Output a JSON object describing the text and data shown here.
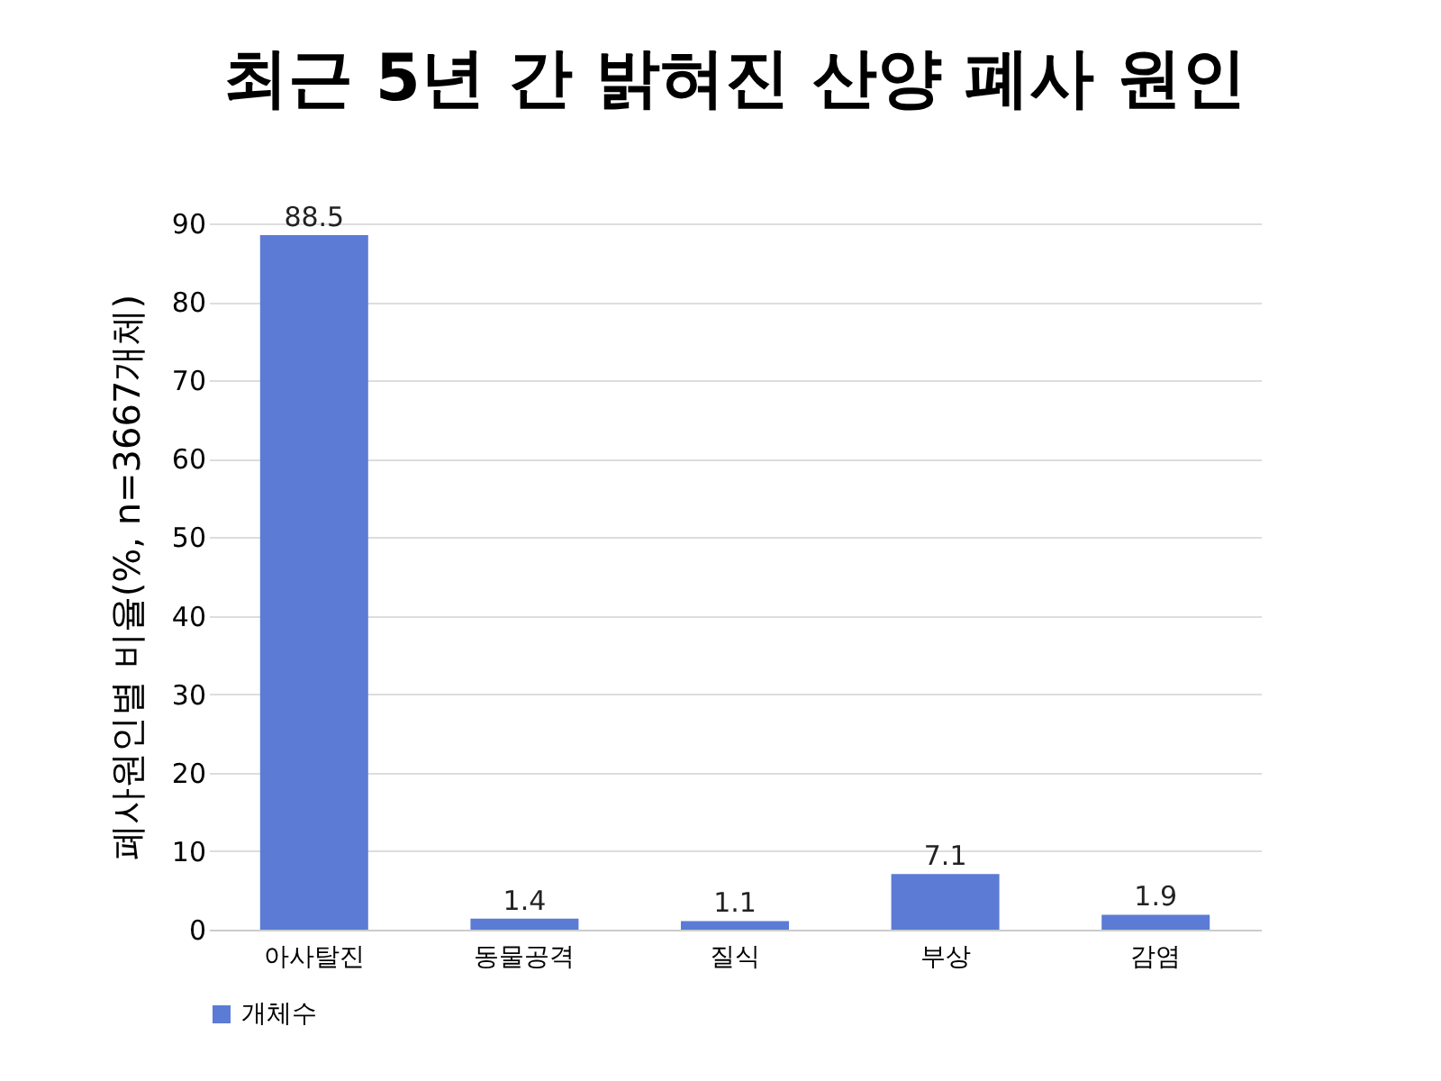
{
  "chart_data": {
    "type": "bar",
    "title": "최근 5년 간 밝혀진 산양 폐사 원인",
    "ylabel": "폐사원인별 비율(%, n=3667개체)",
    "categories": [
      "아사탈진",
      "동물공격",
      "질식",
      "부상",
      "감염"
    ],
    "series": [
      {
        "name": "개체수",
        "color": "#5b7bd5",
        "values": [
          88.5,
          1.4,
          1.1,
          7.1,
          1.9
        ]
      }
    ],
    "ylim": [
      0,
      90
    ],
    "yticks": [
      0,
      10,
      20,
      30,
      40,
      50,
      60,
      70,
      80,
      90
    ],
    "grid": "y",
    "legend": "bottom",
    "data_labels": true
  }
}
